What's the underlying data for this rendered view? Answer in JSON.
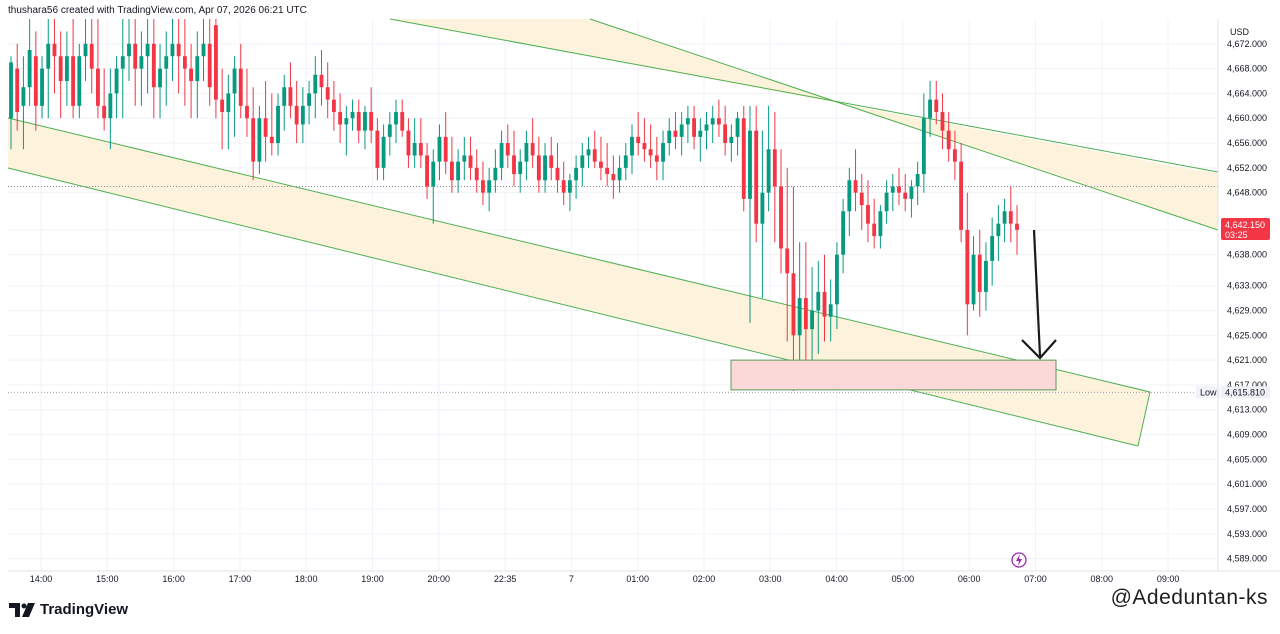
{
  "header": {
    "text": "thushara56 created with TradingView.com, Apr 07, 2026 06:21 UTC"
  },
  "footer": {
    "brand": "TradingView",
    "watermark": "@Adeduntan-ks"
  },
  "colors": {
    "up": "#089981",
    "down": "#f23645",
    "channel_line": "#4caf50",
    "channel_fill": "#fdf3dc",
    "zone_fill": "#fcd9d9",
    "zone_border": "#5b9a5b",
    "arrow": "#1a1a1a"
  },
  "chart_data": {
    "type": "candlestick",
    "symbol_currency": "USD",
    "ylim": [
      4587,
      4676
    ],
    "y_ticks": [
      "4,672.000",
      "4,668.000",
      "4,664.000",
      "4,660.000",
      "4,656.000",
      "4,652.000",
      "4,648.000",
      "4,642.000",
      "4,638.000",
      "4,633.000",
      "4,629.000",
      "4,625.000",
      "4,621.000",
      "4,617.000",
      "4,613.000",
      "4,609.000",
      "4,605.000",
      "4,601.000",
      "4,597.000",
      "4,593.000",
      "4,589.000"
    ],
    "x_ticks": [
      "14:00",
      "15:00",
      "16:00",
      "17:00",
      "18:00",
      "19:00",
      "20:00",
      "22:35",
      "7",
      "01:00",
      "02:00",
      "03:00",
      "04:00",
      "05:00",
      "06:00",
      "07:00",
      "08:00",
      "09:00"
    ],
    "last_price": {
      "label": "4,642.150",
      "countdown": "03:25",
      "value": 4642.15
    },
    "low": {
      "label": "Low",
      "value_label": "4,615.810",
      "value": 4615.81
    },
    "reference_line": 4649,
    "demand_zone": {
      "y_top": 4621,
      "y_bottom": 4616.2
    },
    "candles": [
      [
        4660,
        4670,
        4655,
        4669
      ],
      [
        4668,
        4672,
        4658,
        4661
      ],
      [
        4662,
        4670,
        4655,
        4665
      ],
      [
        4665,
        4676,
        4662,
        4671
      ],
      [
        4670,
        4674,
        4658,
        4662
      ],
      [
        4662,
        4670,
        4660,
        4668
      ],
      [
        4668,
        4676,
        4660,
        4672
      ],
      [
        4672,
        4676,
        4664,
        4670
      ],
      [
        4670,
        4674,
        4660,
        4666
      ],
      [
        4666,
        4674,
        4662,
        4670
      ],
      [
        4670,
        4676,
        4660,
        4662
      ],
      [
        4662,
        4672,
        4660,
        4670
      ],
      [
        4670,
        4676,
        4666,
        4672
      ],
      [
        4672,
        4676,
        4664,
        4668
      ],
      [
        4668,
        4676,
        4660,
        4662
      ],
      [
        4662,
        4668,
        4658,
        4660
      ],
      [
        4660,
        4668,
        4655,
        4664
      ],
      [
        4664,
        4670,
        4660,
        4668
      ],
      [
        4668,
        4676,
        4660,
        4670
      ],
      [
        4670,
        4676,
        4666,
        4672
      ],
      [
        4672,
        4676,
        4662,
        4668
      ],
      [
        4668,
        4674,
        4662,
        4670
      ],
      [
        4670,
        4676,
        4664,
        4672
      ],
      [
        4672,
        4676,
        4660,
        4665
      ],
      [
        4665,
        4672,
        4660,
        4668
      ],
      [
        4668,
        4674,
        4662,
        4670
      ],
      [
        4670,
        4676,
        4666,
        4672
      ],
      [
        4672,
        4676,
        4664,
        4670
      ],
      [
        4670,
        4676,
        4662,
        4668
      ],
      [
        4668,
        4672,
        4660,
        4666
      ],
      [
        4666,
        4674,
        4660,
        4670
      ],
      [
        4670,
        4676,
        4666,
        4672
      ],
      [
        4672,
        4676,
        4662,
        4665
      ],
      [
        4675,
        4676,
        4660,
        4663
      ],
      [
        4663,
        4668,
        4655,
        4661
      ],
      [
        4661,
        4667,
        4655,
        4664
      ],
      [
        4664,
        4670,
        4657,
        4668
      ],
      [
        4668,
        4672,
        4660,
        4662
      ],
      [
        4662,
        4668,
        4657,
        4660
      ],
      [
        4660,
        4665,
        4650,
        4653
      ],
      [
        4653,
        4662,
        4651,
        4660
      ],
      [
        4660,
        4666,
        4653,
        4657
      ],
      [
        4657,
        4664,
        4654,
        4656
      ],
      [
        4656,
        4664,
        4654,
        4662
      ],
      [
        4662,
        4667,
        4658,
        4665
      ],
      [
        4665,
        4669,
        4660,
        4662
      ],
      [
        4662,
        4666,
        4656,
        4659
      ],
      [
        4659,
        4665,
        4656,
        4662
      ],
      [
        4662,
        4666,
        4659,
        4664
      ],
      [
        4664,
        4670,
        4660,
        4667
      ],
      [
        4667,
        4671,
        4662,
        4665
      ],
      [
        4665,
        4669,
        4660,
        4663
      ],
      [
        4663,
        4666,
        4658,
        4661
      ],
      [
        4661,
        4664,
        4656,
        4659
      ],
      [
        4659,
        4662,
        4654,
        4660
      ],
      [
        4660,
        4663,
        4658,
        4661
      ],
      [
        4661,
        4663,
        4656,
        4658
      ],
      [
        4658,
        4662,
        4655,
        4661
      ],
      [
        4661,
        4665,
        4656,
        4658
      ],
      [
        4658,
        4660,
        4650,
        4652
      ],
      [
        4652,
        4659,
        4650,
        4657
      ],
      [
        4657,
        4661,
        4654,
        4659
      ],
      [
        4659,
        4663,
        4656,
        4661
      ],
      [
        4661,
        4663,
        4657,
        4658
      ],
      [
        4658,
        4660,
        4652,
        4654
      ],
      [
        4654,
        4660,
        4652,
        4656
      ],
      [
        4656,
        4660,
        4652,
        4654
      ],
      [
        4654,
        4656,
        4647,
        4649
      ],
      [
        4649,
        4655,
        4643,
        4653
      ],
      [
        4653,
        4659,
        4650,
        4657
      ],
      [
        4657,
        4661,
        4651,
        4653
      ],
      [
        4653,
        4657,
        4648,
        4650
      ],
      [
        4650,
        4655,
        4648,
        4653
      ],
      [
        4653,
        4657,
        4650,
        4654
      ],
      [
        4654,
        4657,
        4650,
        4652
      ],
      [
        4652,
        4655,
        4648,
        4650
      ],
      [
        4650,
        4653,
        4646,
        4648
      ],
      [
        4648,
        4652,
        4645,
        4650
      ],
      [
        4650,
        4655,
        4648,
        4652
      ],
      [
        4652,
        4658,
        4650,
        4656
      ],
      [
        4656,
        4659,
        4652,
        4654
      ],
      [
        4654,
        4658,
        4649,
        4651
      ],
      [
        4651,
        4655,
        4648,
        4653
      ],
      [
        4653,
        4658,
        4650,
        4656
      ],
      [
        4656,
        4660,
        4652,
        4654
      ],
      [
        4654,
        4657,
        4648,
        4650
      ],
      [
        4650,
        4656,
        4648,
        4654
      ],
      [
        4654,
        4657,
        4650,
        4652
      ],
      [
        4652,
        4656,
        4648,
        4650
      ],
      [
        4650,
        4653,
        4646,
        4648
      ],
      [
        4648,
        4651,
        4645,
        4650
      ],
      [
        4650,
        4654,
        4647,
        4652
      ],
      [
        4652,
        4656,
        4649,
        4654
      ],
      [
        4654,
        4657,
        4652,
        4655
      ],
      [
        4655,
        4658,
        4652,
        4653
      ],
      [
        4653,
        4657,
        4650,
        4652
      ],
      [
        4652,
        4656,
        4649,
        4651
      ],
      [
        4651,
        4654,
        4647,
        4650
      ],
      [
        4650,
        4654,
        4648,
        4652
      ],
      [
        4652,
        4656,
        4650,
        4654
      ],
      [
        4654,
        4659,
        4651,
        4657
      ],
      [
        4657,
        4661,
        4654,
        4656
      ],
      [
        4656,
        4660,
        4653,
        4655
      ],
      [
        4655,
        4659,
        4652,
        4654
      ],
      [
        4654,
        4657,
        4650,
        4653
      ],
      [
        4653,
        4658,
        4650,
        4656
      ],
      [
        4656,
        4660,
        4654,
        4658
      ],
      [
        4658,
        4661,
        4655,
        4657
      ],
      [
        4657,
        4661,
        4654,
        4659
      ],
      [
        4659,
        4662,
        4656,
        4660
      ],
      [
        4660,
        4662,
        4655,
        4657
      ],
      [
        4657,
        4660,
        4653,
        4658
      ],
      [
        4658,
        4661,
        4655,
        4659
      ],
      [
        4659,
        4662,
        4656,
        4660
      ],
      [
        4660,
        4663,
        4657,
        4659
      ],
      [
        4659,
        4662,
        4654,
        4656
      ],
      [
        4656,
        4659,
        4653,
        4657
      ],
      [
        4657,
        4661,
        4654,
        4660
      ],
      [
        4660,
        4662,
        4645,
        4647
      ],
      [
        4647,
        4662,
        4627,
        4658
      ],
      [
        4658,
        4662,
        4640,
        4643
      ],
      [
        4643,
        4658,
        4631,
        4648
      ],
      [
        4648,
        4662,
        4645,
        4655
      ],
      [
        4655,
        4661,
        4640,
        4649
      ],
      [
        4649,
        4655,
        4635,
        4639
      ],
      [
        4639,
        4652,
        4624,
        4635
      ],
      [
        4635,
        4649,
        4616,
        4625
      ],
      [
        4625,
        4640,
        4617,
        4631
      ],
      [
        4631,
        4640,
        4620,
        4626
      ],
      [
        4626,
        4636,
        4620,
        4629
      ],
      [
        4629,
        4637,
        4622,
        4632
      ],
      [
        4632,
        4638,
        4624,
        4628
      ],
      [
        4628,
        4634,
        4624,
        4630
      ],
      [
        4630,
        4640,
        4626,
        4638
      ],
      [
        4638,
        4647,
        4635,
        4645
      ],
      [
        4645,
        4652,
        4641,
        4650
      ],
      [
        4650,
        4655,
        4645,
        4648
      ],
      [
        4648,
        4651,
        4642,
        4646
      ],
      [
        4646,
        4650,
        4640,
        4643
      ],
      [
        4643,
        4647,
        4639,
        4641
      ],
      [
        4641,
        4646,
        4639,
        4645
      ],
      [
        4645,
        4650,
        4643,
        4648
      ],
      [
        4648,
        4651,
        4645,
        4649
      ],
      [
        4649,
        4652,
        4646,
        4648
      ],
      [
        4648,
        4651,
        4645,
        4647
      ],
      [
        4647,
        4650,
        4644,
        4649
      ],
      [
        4649,
        4653,
        4646,
        4651
      ],
      [
        4651,
        4664,
        4648,
        4660
      ],
      [
        4660,
        4666,
        4657,
        4663
      ],
      [
        4663,
        4666,
        4659,
        4661
      ],
      [
        4661,
        4664,
        4655,
        4658
      ],
      [
        4658,
        4661,
        4653,
        4655
      ],
      [
        4655,
        4658,
        4650,
        4653
      ],
      [
        4653,
        4656,
        4640,
        4642
      ],
      [
        4642,
        4648,
        4625,
        4630
      ],
      [
        4630,
        4641,
        4629,
        4638
      ],
      [
        4638,
        4642,
        4628,
        4632
      ],
      [
        4632,
        4640,
        4629,
        4637
      ],
      [
        4637,
        4644,
        4633,
        4641
      ],
      [
        4641,
        4646,
        4637,
        4643
      ],
      [
        4643,
        4647,
        4640,
        4645
      ],
      [
        4645,
        4649,
        4640,
        4643
      ],
      [
        4643,
        4646,
        4638,
        4642
      ]
    ]
  }
}
